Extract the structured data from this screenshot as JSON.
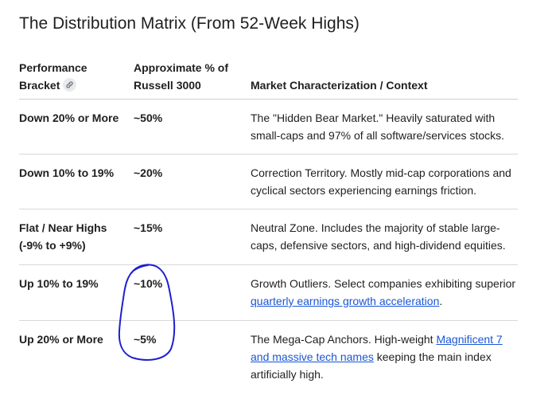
{
  "title": "The Distribution Matrix (From 52-Week Highs)",
  "headers": {
    "bracket": "Performance Bracket",
    "percent": "Approximate % of Russell 3000",
    "context": "Market Characterization / Context"
  },
  "rows": [
    {
      "bracket": "Down 20% or More",
      "percent": "~50%",
      "context": "The \"Hidden Bear Market.\" Heavily saturated with small-caps and 97% of all software/services stocks."
    },
    {
      "bracket": "Down 10% to 19%",
      "percent": "~20%",
      "context": "Correction Territory. Mostly mid-cap corporations and cyclical sectors experiencing earnings friction."
    },
    {
      "bracket": "Flat / Near Highs (-9% to +9%)",
      "percent": "~15%",
      "context": "Neutral Zone. Includes the majority of stable large-caps, defensive sectors, and high-dividend equities."
    },
    {
      "bracket": "Up 10% to 19%",
      "percent": "~10%",
      "context_before": "Growth Outliers. Select companies exhibiting superior ",
      "context_link": "quarterly earnings growth acceleration",
      "context_after": "."
    },
    {
      "bracket": "Up 20% or More",
      "percent": "~5%",
      "context_before": "The Mega-Cap Anchors. High-weight ",
      "context_link": "Magnificent 7 and massive tech names",
      "context_after": " keeping the main index artificially high."
    }
  ],
  "colors": {
    "link": "#1a56d6",
    "annotation": "#1f1fd0"
  },
  "icons": {
    "header_link": "link-icon"
  }
}
